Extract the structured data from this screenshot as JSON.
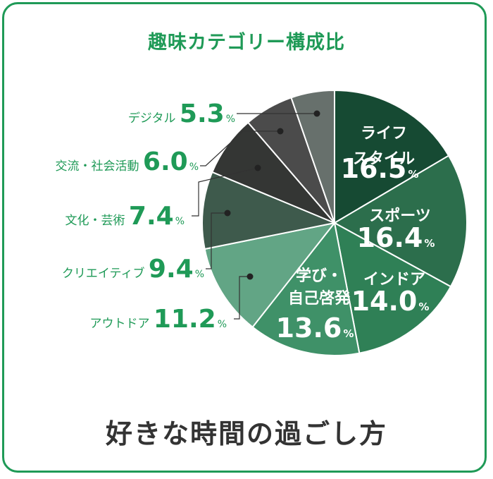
{
  "chart_title": "趣味カテゴリー構成比",
  "subtitle": "好きな時間の過ごし方",
  "percent_sign": "%",
  "colors": {
    "border": "#1f9a57",
    "accent_text": "#1f9a57",
    "label_text": "#1f9a57",
    "subtitle_text": "#333333"
  },
  "chart_data": {
    "type": "pie",
    "title": "趣味カテゴリー構成比",
    "unit": "%",
    "series": [
      {
        "name": "ライフスタイル",
        "value": 16.5,
        "color": "#164a33",
        "label_lines": [
          "ライフ",
          "スタイル"
        ],
        "label_position": "inside"
      },
      {
        "name": "スポーツ",
        "value": 16.4,
        "color": "#2c6e4c",
        "label_lines": [
          "スポーツ"
        ],
        "label_position": "inside"
      },
      {
        "name": "インドア",
        "value": 14.0,
        "color": "#2f8056",
        "label_lines": [
          "インドア"
        ],
        "label_position": "inside"
      },
      {
        "name": "学び・自己啓発",
        "value": 13.6,
        "color": "#3f9168",
        "label_lines": [
          "学び・",
          "自己啓発"
        ],
        "label_position": "inside"
      },
      {
        "name": "アウトドア",
        "value": 11.2,
        "color": "#62a585",
        "label_lines": [
          "アウトドア"
        ],
        "label_position": "outside"
      },
      {
        "name": "クリエイティブ",
        "value": 9.4,
        "color": "#3e5a4c",
        "label_lines": [
          "クリエイティブ"
        ],
        "label_position": "outside"
      },
      {
        "name": "文化・芸術",
        "value": 7.4,
        "color": "#343634",
        "label_lines": [
          "文化・芸術"
        ],
        "label_position": "outside"
      },
      {
        "name": "交流・社会活動",
        "value": 6.0,
        "color": "#4b4b4b",
        "label_lines": [
          "交流・社会活動"
        ],
        "label_position": "outside"
      },
      {
        "name": "デジタル",
        "value": 5.3,
        "color": "#67706c",
        "label_lines": [
          "デジタル"
        ],
        "label_position": "outside"
      }
    ]
  }
}
